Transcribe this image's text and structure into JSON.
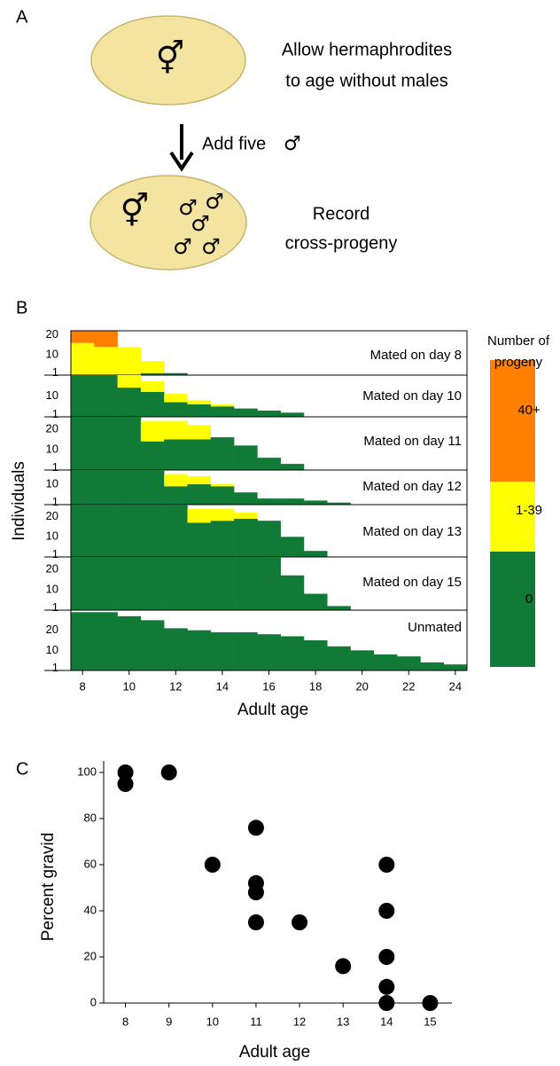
{
  "panel_labels": [
    "A",
    "B",
    "C"
  ],
  "panel_a": {
    "hermaphrodite_symbol": "⚥",
    "male_symbol": "♂",
    "step1": [
      "Allow hermaphrodites",
      "to age without males"
    ],
    "arrow_label": "Add  five",
    "step2": [
      "Record",
      "cross-progeny"
    ]
  },
  "chart_data": [
    {
      "type": "stacked-steps",
      "xlabel": "Adult age",
      "ylabel": "Individuals",
      "xlim": [
        7.5,
        24.5
      ],
      "xticks": [
        8,
        10,
        12,
        14,
        16,
        18,
        20,
        22,
        24
      ],
      "legend_title": [
        "Number of",
        "progeny"
      ],
      "series": [
        {
          "name": "0",
          "color": "#127a37"
        },
        {
          "name": "1-39",
          "color": "#ffff00"
        },
        {
          "name": "40+",
          "color": "#ff7f00"
        }
      ],
      "panels": [
        {
          "name": "Mated on day 8",
          "ylim": [
            0,
            22
          ],
          "yticks": [
            1,
            10,
            20
          ],
          "x": [
            8,
            9,
            10,
            11,
            12
          ],
          "values": [
            [
              0,
              0,
              0,
              1,
              1
            ],
            [
              16,
              14,
              14,
              6,
              0
            ],
            [
              6,
              8,
              0,
              0,
              0
            ]
          ]
        },
        {
          "name": "Mated on day 10",
          "ylim": [
            0,
            20
          ],
          "yticks": [
            1,
            10
          ],
          "x": [
            8,
            9,
            10,
            11,
            12,
            13,
            14,
            15,
            16,
            17
          ],
          "values": [
            [
              20,
              20,
              14,
              12,
              7,
              6,
              5,
              4,
              3,
              2
            ],
            [
              0,
              0,
              6,
              5,
              4,
              2,
              1,
              0,
              0,
              0
            ],
            [
              0,
              0,
              0,
              0,
              0,
              0,
              0,
              0,
              0,
              0
            ]
          ]
        },
        {
          "name": "Mated on day 11",
          "ylim": [
            0,
            26
          ],
          "yticks": [
            1,
            10,
            20
          ],
          "x": [
            8,
            9,
            10,
            11,
            12,
            13,
            14,
            15,
            16,
            17
          ],
          "values": [
            [
              26,
              26,
              26,
              14,
              15,
              15,
              16,
              12,
              6,
              3
            ],
            [
              0,
              0,
              0,
              10,
              9,
              7,
              0,
              0,
              0,
              0
            ],
            [
              0,
              0,
              0,
              0,
              0,
              0,
              0,
              0,
              0,
              0
            ]
          ]
        },
        {
          "name": "Mated on day 12",
          "ylim": [
            0,
            17
          ],
          "yticks": [
            1,
            10
          ],
          "x": [
            8,
            9,
            10,
            11,
            12,
            13,
            14,
            15,
            16,
            17,
            18,
            19
          ],
          "values": [
            [
              17,
              17,
              17,
              17,
              9,
              10,
              9,
              6,
              3,
              3,
              2,
              1
            ],
            [
              0,
              0,
              0,
              0,
              6,
              4,
              1,
              0,
              0,
              0,
              0,
              0
            ],
            [
              0,
              0,
              0,
              0,
              0,
              0,
              0,
              0,
              0,
              0,
              0,
              0
            ]
          ]
        },
        {
          "name": "Mated on day 13",
          "ylim": [
            0,
            26
          ],
          "yticks": [
            1,
            10,
            20
          ],
          "x": [
            8,
            9,
            10,
            11,
            12,
            13,
            14,
            15,
            16,
            17,
            18
          ],
          "values": [
            [
              26,
              26,
              26,
              26,
              26,
              17,
              18,
              19,
              18,
              10,
              3
            ],
            [
              0,
              0,
              0,
              0,
              0,
              7,
              6,
              3,
              0,
              0,
              0
            ],
            [
              0,
              0,
              0,
              0,
              0,
              0,
              0,
              0,
              0,
              0,
              0
            ]
          ]
        },
        {
          "name": "Mated on day 15",
          "ylim": [
            0,
            26
          ],
          "yticks": [
            1,
            10,
            20
          ],
          "x": [
            8,
            9,
            10,
            11,
            12,
            13,
            14,
            15,
            16,
            17,
            18,
            19
          ],
          "values": [
            [
              26,
              26,
              26,
              26,
              26,
              26,
              26,
              26,
              26,
              17,
              8,
              2
            ],
            [
              0,
              0,
              0,
              0,
              0,
              0,
              0,
              0,
              0,
              0,
              0,
              0
            ],
            [
              0,
              0,
              0,
              0,
              0,
              0,
              0,
              0,
              0,
              0,
              0,
              0
            ]
          ]
        },
        {
          "name": "Unmated",
          "ylim": [
            0,
            30
          ],
          "yticks": [
            1,
            10,
            20
          ],
          "x": [
            8,
            9,
            10,
            11,
            12,
            13,
            14,
            15,
            16,
            17,
            18,
            19,
            20,
            21,
            22,
            23,
            24
          ],
          "values": [
            [
              29,
              29,
              27,
              25,
              21,
              20,
              19,
              19,
              18,
              17,
              15,
              12,
              10,
              8,
              7,
              4,
              3
            ],
            [
              0,
              0,
              0,
              0,
              0,
              0,
              0,
              0,
              0,
              0,
              0,
              0,
              0,
              0,
              0,
              0,
              0
            ],
            [
              0,
              0,
              0,
              0,
              0,
              0,
              0,
              0,
              0,
              0,
              0,
              0,
              0,
              0,
              0,
              0,
              0
            ]
          ]
        }
      ]
    },
    {
      "type": "scatter",
      "xlabel": "Adult age",
      "ylabel": "Percent  gravid",
      "color": "#000000",
      "x": [
        8,
        8,
        9,
        10,
        11,
        11,
        11,
        11,
        12,
        13,
        14,
        14,
        14,
        14,
        14,
        15
      ],
      "values": [
        100,
        95,
        100,
        60,
        76,
        52,
        48,
        35,
        35,
        16,
        60,
        40,
        20,
        7,
        0,
        0
      ],
      "xlim": [
        7.5,
        15.5
      ],
      "ylim": [
        0,
        105
      ],
      "xticks": [
        8,
        9,
        10,
        11,
        12,
        13,
        14,
        15
      ],
      "yticks": [
        0,
        20,
        40,
        60,
        80,
        100
      ]
    }
  ]
}
